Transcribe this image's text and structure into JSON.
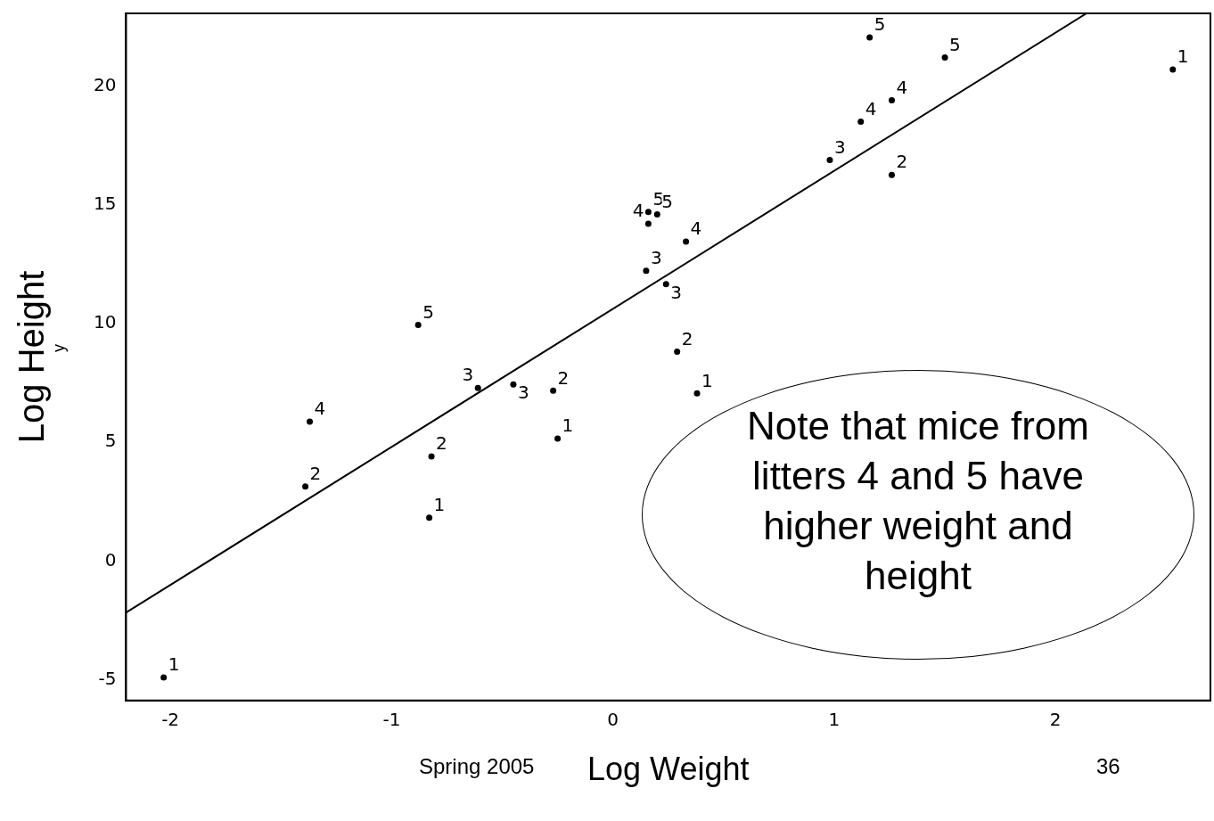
{
  "chart_data": {
    "type": "scatter",
    "xlabel": "Log Weight",
    "ylabel": "Log Height",
    "xlim": [
      -2.2,
      2.7
    ],
    "ylim": [
      -5.87,
      23.06
    ],
    "xticks": [
      -2,
      -1,
      0,
      1,
      2
    ],
    "yticks": [
      -5,
      0,
      5,
      10,
      15,
      20
    ],
    "grid": false,
    "legend": false,
    "series": [
      {
        "name": "1",
        "color": "#000000",
        "x": [
          -2.03,
          -0.83,
          -0.25,
          0.38,
          2.53
        ],
        "values": [
          -4.9,
          1.83,
          5.16,
          7.06,
          20.7
        ]
      },
      {
        "name": "2",
        "color": "#000000",
        "x": [
          -1.39,
          -0.82,
          -0.27,
          0.29,
          1.26
        ],
        "values": [
          3.14,
          4.41,
          7.17,
          8.82,
          16.26
        ]
      },
      {
        "name": "3",
        "color": "#000000",
        "x": [
          -0.61,
          -0.45,
          0.15,
          0.24,
          0.98
        ],
        "values": [
          7.29,
          7.44,
          12.22,
          11.66,
          16.89
        ]
      },
      {
        "name": "4",
        "color": "#000000",
        "x": [
          -1.37,
          0.16,
          0.33,
          1.12,
          1.26
        ],
        "values": [
          5.87,
          14.2,
          13.45,
          18.5,
          19.4
        ]
      },
      {
        "name": "5",
        "color": "#000000",
        "x": [
          -0.88,
          0.16,
          0.2,
          1.16,
          1.5
        ],
        "values": [
          9.94,
          14.7,
          14.6,
          22.05,
          21.2
        ]
      },
      {
        "type": "line",
        "color": "#000000",
        "x": [
          -2.2,
          2.14
        ],
        "values": [
          -2.17,
          23.06
        ]
      }
    ],
    "annotations": [
      "y",
      "Note that mice from litters 4 and 5 have higher weight and height",
      "Spring 2005",
      "36"
    ]
  }
}
